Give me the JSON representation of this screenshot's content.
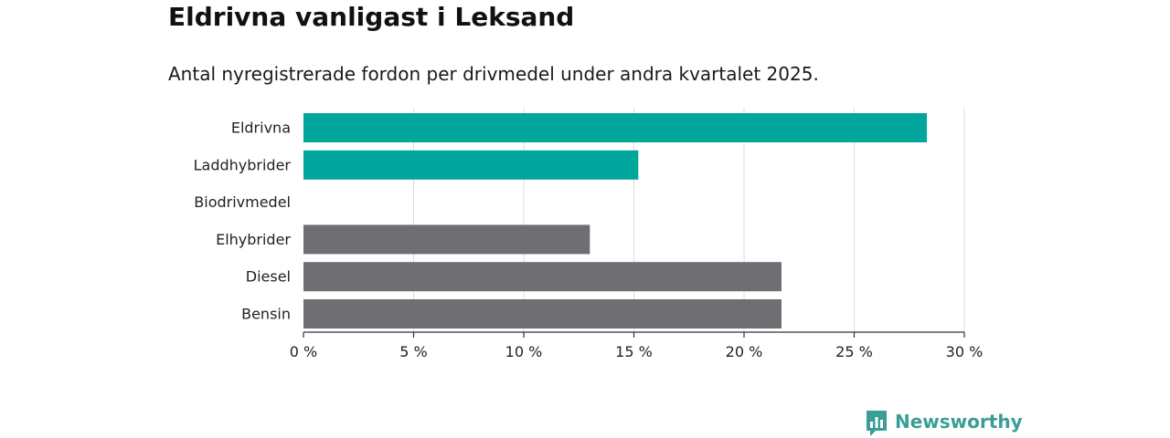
{
  "header": {
    "title": "Eldrivna vanligast i Leksand",
    "subtitle": "Antal nyregistrerade fordon per drivmedel under andra kvartalet 2025."
  },
  "brand": {
    "name": "Newsworthy",
    "color": "#3a9e96",
    "logo_icon": "newsworthy-logo-icon"
  },
  "chart_data": {
    "type": "bar",
    "orientation": "horizontal",
    "categories": [
      "Eldrivna",
      "Laddhybrider",
      "Biodrivmedel",
      "Elhybrider",
      "Diesel",
      "Bensin"
    ],
    "values": [
      28.3,
      15.2,
      0,
      13.0,
      21.7,
      21.7
    ],
    "bar_colors": [
      "#00a69c",
      "#00a69c",
      "#00a69c",
      "#6e6e73",
      "#6e6e73",
      "#6e6e73"
    ],
    "xlim": [
      0,
      30
    ],
    "xticks": [
      0,
      5,
      10,
      15,
      20,
      25,
      30
    ],
    "xtick_labels": [
      "0 %",
      "5 %",
      "10 %",
      "15 %",
      "20 %",
      "25 %",
      "30 %"
    ],
    "grid": true,
    "title": "Eldrivna vanligast i Leksand",
    "xlabel": "",
    "ylabel": ""
  }
}
